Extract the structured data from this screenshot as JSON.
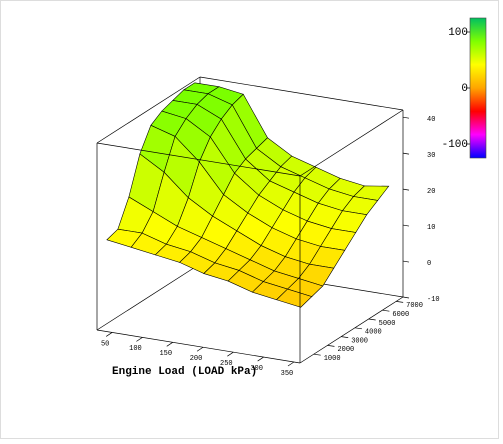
{
  "chart_data": {
    "type": "surface",
    "x_label": "Engine Load (LOAD kPa)",
    "x": [
      30,
      70,
      110,
      150,
      190,
      230,
      270,
      310,
      350
    ],
    "y": [
      500,
      1300,
      2100,
      2900,
      3700,
      4500,
      5300,
      6100,
      6900
    ],
    "z": [
      [
        14,
        13,
        12,
        11,
        9,
        8,
        6,
        5,
        4
      ],
      [
        15,
        15,
        13,
        12,
        10,
        9,
        7,
        6,
        5
      ],
      [
        22,
        19,
        16,
        14,
        12,
        10,
        8,
        7,
        6
      ],
      [
        32,
        28,
        22,
        18,
        15,
        12,
        10,
        9,
        9
      ],
      [
        38,
        36,
        30,
        22,
        18,
        15,
        13,
        12,
        12
      ],
      [
        40,
        39,
        35,
        26,
        21,
        18,
        16,
        15,
        15
      ],
      [
        41,
        41,
        38,
        28,
        23,
        21,
        19,
        18,
        18
      ],
      [
        42,
        42,
        40,
        29,
        25,
        23,
        21,
        20,
        20
      ],
      [
        42,
        42,
        41,
        30,
        26,
        24,
        22,
        21,
        22
      ]
    ],
    "xlim": [
      25,
      360
    ],
    "ylim": [
      0,
      7500
    ],
    "zlim": [
      -10,
      42
    ],
    "xticks": [
      50,
      100,
      150,
      200,
      250,
      300,
      350
    ],
    "yticks": [
      1000,
      2000,
      3000,
      4000,
      5000,
      6000,
      7000
    ],
    "zticks": [
      -10,
      0,
      10,
      20,
      30,
      40
    ],
    "colorbar": {
      "lim": [
        -125,
        125
      ],
      "ticks": [
        100,
        0,
        -100
      ],
      "colors": [
        "#0000ff",
        "#ff00ff",
        "#ff0000",
        "#ffa500",
        "#ffff00",
        "#7fff00",
        "#00c060"
      ]
    }
  }
}
